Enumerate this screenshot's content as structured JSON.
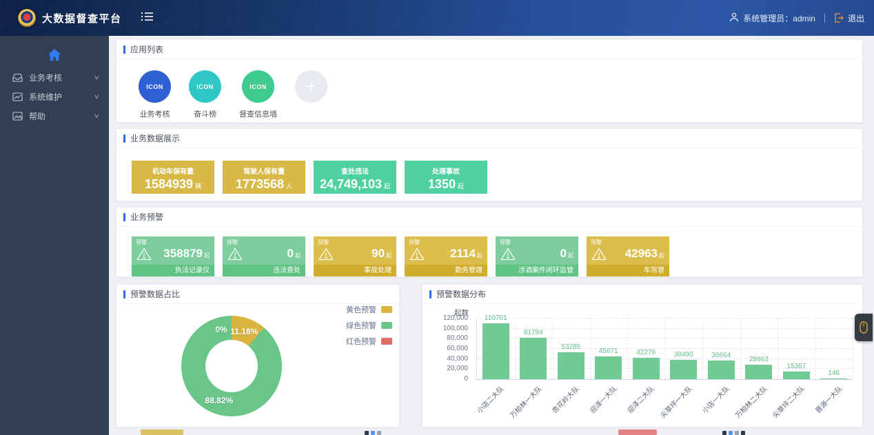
{
  "header": {
    "title": "大数据督查平台",
    "user_label": "系统管理员：admin",
    "logout_label": "退出"
  },
  "sidebar": {
    "items": [
      {
        "label": "业务考核"
      },
      {
        "label": "系统维护"
      },
      {
        "label": "帮助"
      }
    ]
  },
  "app_list": {
    "title": "应用列表",
    "icon_placeholder": "ICON",
    "add_label": "+",
    "apps": [
      {
        "label": "业务考核",
        "color": "#2e5fd3"
      },
      {
        "label": "奋斗榜",
        "color": "#2fc6c8"
      },
      {
        "label": "督查信息墙",
        "color": "#3dcb8e"
      }
    ]
  },
  "data_display": {
    "title": "业务数据展示",
    "cards": [
      {
        "label": "机动车保有量",
        "value": "1584939",
        "unit": "辆",
        "color": "#d8b945"
      },
      {
        "label": "驾驶人保有量",
        "value": "1773568",
        "unit": "人",
        "color": "#d8b945"
      },
      {
        "label": "查处违法",
        "value": "24,749,103",
        "unit": "起",
        "color": "#4ed0a0"
      },
      {
        "label": "处理事故",
        "value": "1350",
        "unit": "起",
        "color": "#4ed0a0"
      }
    ]
  },
  "warnings": {
    "title": "业务预警",
    "badge_label": "预警",
    "unit": "起",
    "cards": [
      {
        "value": "358879",
        "label": "执法记录仪",
        "type": "green"
      },
      {
        "value": "0",
        "label": "违法查处",
        "type": "green"
      },
      {
        "value": "90",
        "label": "事故处理",
        "type": "gold"
      },
      {
        "value": "2114",
        "label": "勤务管理",
        "type": "gold"
      },
      {
        "value": "0",
        "label": "涉酒案件闭环监管",
        "type": "green"
      },
      {
        "value": "42963",
        "label": "车驾管",
        "type": "gold"
      }
    ]
  },
  "donut_panel": {
    "title": "预警数据占比"
  },
  "bar_panel": {
    "title": "预警数据分布"
  },
  "chart_data": [
    {
      "type": "pie",
      "donut": true,
      "title": "预警数据占比",
      "legend_position": "top-right",
      "slices": [
        {
          "label": "黄色预警",
          "value": 11.18,
          "color": "#d9b53f",
          "data_label": "11.18%"
        },
        {
          "label": "绿色预警",
          "value": 88.82,
          "color": "#69c688",
          "data_label": "88.82%"
        },
        {
          "label": "红色预警",
          "value": 0,
          "color": "#dd6b66",
          "data_label": "0%"
        }
      ]
    },
    {
      "type": "bar",
      "title": "预警数据分布",
      "ylabel": "起数",
      "categories": [
        "小店二大队",
        "万柏林一大队",
        "杏花岭大队",
        "迎泽一大队",
        "迎泽二大队",
        "尖草坪一大队",
        "小店一大队",
        "万柏林二大队",
        "尖草坪二大队",
        "晋源一大队"
      ],
      "values": [
        110701,
        81784,
        53285,
        45671,
        42276,
        38490,
        36664,
        28663,
        15367,
        146
      ],
      "ylim": [
        0,
        120000
      ],
      "ytick_labels": [
        "0",
        "20,000",
        "40,000",
        "60,000",
        "80,000",
        "100,000",
        "120,000"
      ],
      "grid": true,
      "bar_color": "#6fcb93",
      "label_color": "#5fbf87"
    }
  ]
}
